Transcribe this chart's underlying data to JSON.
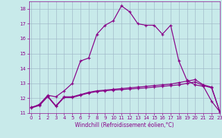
{
  "xlabel": "Windchill (Refroidissement éolien,°C)",
  "background_color": "#c8eaea",
  "grid_color": "#a0b8c8",
  "line_color": "#880088",
  "line_color2": "#6600aa",
  "x_values": [
    0,
    1,
    2,
    3,
    4,
    5,
    6,
    7,
    8,
    9,
    10,
    11,
    12,
    13,
    14,
    15,
    16,
    17,
    18,
    19,
    20,
    21,
    22,
    23
  ],
  "series1": [
    11.35,
    11.6,
    12.2,
    12.1,
    12.5,
    13.0,
    14.5,
    14.7,
    16.3,
    16.9,
    17.2,
    18.2,
    17.8,
    17.0,
    16.9,
    16.9,
    16.3,
    16.9,
    14.5,
    13.2,
    12.9,
    12.8,
    11.8,
    11.1
  ],
  "series2": [
    11.4,
    11.55,
    12.15,
    11.5,
    12.1,
    12.1,
    12.25,
    12.4,
    12.5,
    12.55,
    12.6,
    12.65,
    12.7,
    12.75,
    12.8,
    12.85,
    12.9,
    12.95,
    13.05,
    13.15,
    13.25,
    12.9,
    12.75,
    11.1
  ],
  "series3": [
    11.35,
    11.52,
    12.1,
    11.45,
    12.05,
    12.05,
    12.2,
    12.35,
    12.45,
    12.5,
    12.55,
    12.58,
    12.62,
    12.66,
    12.7,
    12.75,
    12.8,
    12.85,
    12.9,
    13.0,
    13.1,
    12.85,
    12.7,
    11.1
  ],
  "ylim": [
    11,
    18.5
  ],
  "xlim": [
    -0.3,
    23
  ],
  "yticks": [
    11,
    12,
    13,
    14,
    15,
    16,
    17,
    18
  ],
  "xticks": [
    0,
    1,
    2,
    3,
    4,
    5,
    6,
    7,
    8,
    9,
    10,
    11,
    12,
    13,
    14,
    15,
    16,
    17,
    18,
    19,
    20,
    21,
    22,
    23
  ]
}
